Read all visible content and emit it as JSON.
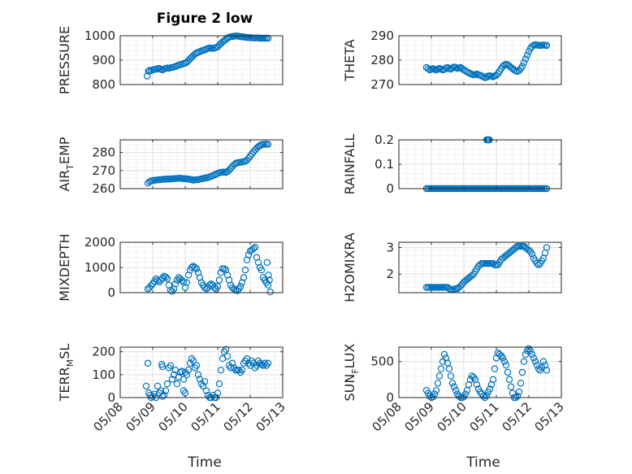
{
  "figure": {
    "title": "Figure 2 low",
    "xlabel": "Time"
  },
  "chart_data": [
    {
      "type": "scatter",
      "name": "pressure",
      "ylabel": "PRESSURE",
      "ylim": [
        800,
        1000
      ],
      "yticks": [
        800,
        900,
        1000
      ],
      "xticks": [
        "05/08",
        "05/09",
        "05/10",
        "05/11",
        "05/12",
        "05/13"
      ],
      "color": "#0072BD",
      "grid": true,
      "x": [
        0.83,
        0.87,
        0.9,
        0.95,
        1.0,
        1.05,
        1.1,
        1.15,
        1.2,
        1.25,
        1.3,
        1.35,
        1.4,
        1.45,
        1.5,
        1.55,
        1.6,
        1.65,
        1.7,
        1.75,
        1.8,
        1.85,
        1.9,
        1.95,
        2.0,
        2.05,
        2.1,
        2.15,
        2.2,
        2.25,
        2.3,
        2.35,
        2.4,
        2.45,
        2.5,
        2.55,
        2.6,
        2.65,
        2.7,
        2.75,
        2.8,
        2.85,
        2.9,
        2.95,
        3.0,
        3.05,
        3.1,
        3.15,
        3.2,
        3.25,
        3.3,
        3.35,
        3.4,
        3.45,
        3.5,
        3.55,
        3.6,
        3.65,
        3.7,
        3.75,
        3.8,
        3.85,
        3.9,
        3.95,
        4.0,
        4.05,
        4.1,
        4.15,
        4.2,
        4.25,
        4.3,
        4.35,
        4.4,
        4.45,
        4.5,
        4.55
      ],
      "y": [
        835,
        855,
        858,
        857,
        860,
        862,
        863,
        865,
        866,
        862,
        860,
        864,
        866,
        868,
        867,
        869,
        870,
        872,
        874,
        877,
        880,
        882,
        883,
        886,
        888,
        892,
        898,
        906,
        912,
        918,
        925,
        930,
        932,
        935,
        938,
        940,
        942,
        945,
        948,
        950,
        949,
        948,
        950,
        952,
        955,
        962,
        968,
        975,
        980,
        985,
        990,
        994,
        996,
        997,
        998,
        999,
        999,
        998,
        997,
        996,
        995,
        994,
        993,
        993,
        992,
        992,
        991,
        991,
        991,
        991,
        990,
        990,
        990,
        990,
        990,
        990
      ]
    },
    {
      "type": "scatter",
      "name": "theta",
      "ylabel": "THETA",
      "ylim": [
        270,
        290
      ],
      "yticks": [
        270,
        280,
        290
      ],
      "xticks": [
        "05/08",
        "05/09",
        "05/10",
        "05/11",
        "05/12",
        "05/13"
      ],
      "color": "#0072BD",
      "grid": true,
      "x": [
        0.85,
        0.9,
        0.95,
        1.0,
        1.05,
        1.1,
        1.15,
        1.2,
        1.25,
        1.3,
        1.35,
        1.4,
        1.45,
        1.5,
        1.55,
        1.6,
        1.65,
        1.7,
        1.75,
        1.8,
        1.85,
        1.9,
        1.95,
        2.0,
        2.05,
        2.1,
        2.15,
        2.2,
        2.25,
        2.3,
        2.35,
        2.4,
        2.45,
        2.5,
        2.55,
        2.6,
        2.65,
        2.7,
        2.75,
        2.8,
        2.85,
        2.9,
        2.95,
        3.0,
        3.05,
        3.1,
        3.15,
        3.2,
        3.25,
        3.3,
        3.35,
        3.4,
        3.45,
        3.5,
        3.55,
        3.6,
        3.65,
        3.7,
        3.75,
        3.8,
        3.85,
        3.9,
        3.95,
        4.0,
        4.05,
        4.1,
        4.15,
        4.2,
        4.25,
        4.3,
        4.35,
        4.4,
        4.45,
        4.5,
        4.55
      ],
      "y": [
        277,
        276.5,
        276,
        276.3,
        276.5,
        276.2,
        276,
        276.4,
        276.6,
        276.3,
        276,
        276.2,
        276.8,
        277,
        276.5,
        276.3,
        276.8,
        277.2,
        277,
        276.6,
        276.8,
        277,
        276.5,
        276,
        275.6,
        275.2,
        274.8,
        274.5,
        274.2,
        274,
        274.1,
        274.3,
        274,
        273.8,
        273.5,
        273.2,
        272.8,
        273,
        273.5,
        273.6,
        273.4,
        273.2,
        273.5,
        273.8,
        274.5,
        275.5,
        276.5,
        277.5,
        278,
        278.3,
        278.1,
        277.6,
        277,
        276.5,
        276,
        275.6,
        275.4,
        275.8,
        276.5,
        277.5,
        279,
        280.5,
        282,
        283.5,
        284.8,
        285.6,
        286.1,
        286.3,
        286.2,
        286.1,
        286,
        286.1,
        286.2,
        286.1,
        286
      ]
    },
    {
      "type": "scatter",
      "name": "air_temp",
      "ylabel": "AIR_TEMP",
      "ylim": [
        260,
        287
      ],
      "yticks": [
        260,
        270,
        280
      ],
      "xticks": [
        "05/08",
        "05/09",
        "05/10",
        "05/11",
        "05/12",
        "05/13"
      ],
      "color": "#0072BD",
      "grid": true,
      "x": [
        0.85,
        0.9,
        0.95,
        1.0,
        1.05,
        1.1,
        1.15,
        1.2,
        1.25,
        1.3,
        1.35,
        1.4,
        1.45,
        1.5,
        1.55,
        1.6,
        1.65,
        1.7,
        1.75,
        1.8,
        1.85,
        1.9,
        1.95,
        2.0,
        2.05,
        2.1,
        2.15,
        2.2,
        2.25,
        2.3,
        2.35,
        2.4,
        2.45,
        2.5,
        2.55,
        2.6,
        2.65,
        2.7,
        2.75,
        2.8,
        2.85,
        2.9,
        2.95,
        3.0,
        3.05,
        3.1,
        3.15,
        3.2,
        3.25,
        3.3,
        3.35,
        3.4,
        3.45,
        3.5,
        3.55,
        3.6,
        3.65,
        3.7,
        3.75,
        3.8,
        3.85,
        3.9,
        3.95,
        4.0,
        4.05,
        4.1,
        4.15,
        4.2,
        4.25,
        4.3,
        4.35,
        4.4,
        4.45,
        4.5,
        4.55
      ],
      "y": [
        263,
        263.8,
        264.2,
        264.4,
        264.6,
        264.7,
        264.8,
        264.9,
        265,
        265.1,
        265.2,
        265.2,
        265.3,
        265.3,
        265.4,
        265.4,
        265.5,
        265.6,
        265.6,
        265.7,
        265.7,
        265.6,
        265.5,
        265.5,
        265.4,
        265.3,
        265.1,
        264.9,
        264.7,
        264.8,
        264.9,
        265,
        265.2,
        265.4,
        265.6,
        265.8,
        266,
        266.2,
        266.5,
        266.8,
        267.2,
        267.6,
        268,
        268.4,
        268.8,
        269,
        269.1,
        269.2,
        269,
        269.4,
        270.2,
        271.2,
        272.3,
        273.2,
        273.9,
        274.3,
        274.5,
        274.6,
        274.7,
        274.9,
        275.2,
        275.8,
        276.8,
        278,
        279.2,
        280.3,
        281.4,
        282.4,
        283.2,
        283.8,
        284.3,
        284.5,
        284.6,
        284.6,
        284.5
      ]
    },
    {
      "type": "scatter",
      "name": "rainfall",
      "ylabel": "RAINFALL",
      "ylim": [
        0,
        0.2
      ],
      "yticks": [
        0,
        0.1,
        0.2
      ],
      "xticks": [
        "05/08",
        "05/09",
        "05/10",
        "05/11",
        "05/12",
        "05/13"
      ],
      "color": "#0072BD",
      "grid": true,
      "x": [
        0.85,
        0.9,
        0.95,
        1.0,
        1.05,
        1.1,
        1.15,
        1.2,
        1.25,
        1.3,
        1.35,
        1.4,
        1.45,
        1.5,
        1.55,
        1.6,
        1.65,
        1.7,
        1.75,
        1.8,
        1.85,
        1.9,
        1.95,
        2.0,
        2.05,
        2.1,
        2.15,
        2.2,
        2.25,
        2.3,
        2.35,
        2.4,
        2.45,
        2.5,
        2.55,
        2.6,
        2.65,
        2.7,
        2.75,
        2.8,
        2.85,
        2.9,
        2.95,
        3.0,
        3.05,
        3.1,
        3.15,
        3.2,
        3.25,
        3.3,
        3.35,
        3.4,
        3.45,
        3.5,
        3.55,
        3.6,
        3.65,
        3.7,
        3.75,
        3.8,
        3.85,
        3.9,
        3.95,
        4.0,
        4.05,
        4.1,
        4.15,
        4.2,
        4.25,
        4.3,
        4.35,
        4.4,
        4.45,
        4.5,
        4.55,
        2.7,
        2.73,
        2.76,
        2.79
      ],
      "y": [
        0,
        0,
        0,
        0,
        0,
        0,
        0,
        0,
        0,
        0,
        0,
        0,
        0,
        0,
        0,
        0,
        0,
        0,
        0,
        0,
        0,
        0,
        0,
        0,
        0,
        0,
        0,
        0,
        0,
        0,
        0,
        0,
        0,
        0,
        0,
        0,
        0,
        0,
        0,
        0,
        0,
        0,
        0,
        0,
        0,
        0,
        0,
        0,
        0,
        0,
        0,
        0,
        0,
        0,
        0,
        0,
        0,
        0,
        0,
        0,
        0,
        0,
        0,
        0,
        0,
        0,
        0,
        0,
        0,
        0,
        0,
        0,
        0,
        0,
        0,
        0.2,
        0.2,
        0.2,
        0.2
      ]
    },
    {
      "type": "scatter",
      "name": "mixdepth",
      "ylabel": "MIXDEPTH",
      "ylim": [
        0,
        2000
      ],
      "yticks": [
        0,
        1000,
        2000
      ],
      "xticks": [
        "05/08",
        "05/09",
        "05/10",
        "05/11",
        "05/12",
        "05/13"
      ],
      "color": "#0072BD",
      "grid": true,
      "x": [
        0.85,
        0.9,
        0.95,
        1.0,
        1.05,
        1.1,
        1.15,
        1.2,
        1.25,
        1.3,
        1.35,
        1.4,
        1.45,
        1.5,
        1.55,
        1.6,
        1.65,
        1.7,
        1.75,
        1.8,
        1.85,
        1.9,
        1.95,
        2.0,
        2.05,
        2.1,
        2.15,
        2.2,
        2.25,
        2.3,
        2.35,
        2.4,
        2.45,
        2.5,
        2.55,
        2.6,
        2.65,
        2.7,
        2.75,
        2.8,
        2.85,
        2.9,
        2.95,
        3.0,
        3.05,
        3.1,
        3.15,
        3.2,
        3.25,
        3.3,
        3.35,
        3.4,
        3.45,
        3.5,
        3.55,
        3.6,
        3.65,
        3.7,
        3.75,
        3.8,
        3.85,
        3.9,
        3.95,
        4.0,
        4.05,
        4.1,
        4.15,
        4.2,
        4.25,
        4.3,
        4.35,
        4.4,
        4.45,
        4.5,
        4.55,
        4.52,
        4.56,
        4.59,
        4.62
      ],
      "y": [
        150,
        200,
        280,
        350,
        450,
        550,
        480,
        420,
        500,
        580,
        650,
        620,
        560,
        300,
        100,
        50,
        150,
        350,
        500,
        600,
        550,
        480,
        420,
        200,
        400,
        700,
        900,
        1000,
        1050,
        1000,
        950,
        800,
        600,
        400,
        300,
        200,
        150,
        200,
        300,
        350,
        300,
        200,
        150,
        250,
        500,
        800,
        950,
        950,
        900,
        700,
        500,
        300,
        200,
        150,
        100,
        80,
        150,
        250,
        400,
        600,
        900,
        1300,
        1500,
        1650,
        1700,
        1750,
        1800,
        1400,
        1200,
        1000,
        900,
        600,
        500,
        400,
        300,
        1200,
        700,
        500,
        30
      ]
    },
    {
      "type": "scatter",
      "name": "h2o_mixratio",
      "ylabel": "H2OMIXRA",
      "ylim": [
        1.3,
        3.2
      ],
      "yticks": [
        2,
        3
      ],
      "xticks": [
        "05/08",
        "05/09",
        "05/10",
        "05/11",
        "05/12",
        "05/13"
      ],
      "color": "#0072BD",
      "grid": true,
      "x": [
        0.85,
        0.9,
        0.95,
        1.0,
        1.05,
        1.1,
        1.15,
        1.2,
        1.25,
        1.3,
        1.35,
        1.4,
        1.45,
        1.5,
        1.55,
        1.6,
        1.65,
        1.7,
        1.75,
        1.8,
        1.85,
        1.9,
        1.95,
        2.0,
        2.05,
        2.1,
        2.15,
        2.2,
        2.25,
        2.3,
        2.35,
        2.4,
        2.45,
        2.5,
        2.55,
        2.6,
        2.65,
        2.7,
        2.75,
        2.8,
        2.85,
        2.9,
        2.95,
        3.0,
        3.05,
        3.1,
        3.15,
        3.2,
        3.25,
        3.3,
        3.35,
        3.4,
        3.45,
        3.5,
        3.55,
        3.6,
        3.65,
        3.7,
        3.75,
        3.8,
        3.85,
        3.9,
        3.95,
        4.0,
        4.05,
        4.1,
        4.15,
        4.2,
        4.25,
        4.3,
        4.35,
        4.4,
        4.45,
        4.5,
        4.55
      ],
      "y": [
        1.5,
        1.5,
        1.5,
        1.5,
        1.5,
        1.5,
        1.5,
        1.5,
        1.5,
        1.5,
        1.5,
        1.5,
        1.5,
        1.5,
        1.45,
        1.42,
        1.42,
        1.43,
        1.45,
        1.45,
        1.5,
        1.55,
        1.62,
        1.7,
        1.75,
        1.8,
        1.85,
        1.9,
        1.95,
        2.0,
        2.1,
        2.2,
        2.3,
        2.35,
        2.4,
        2.4,
        2.4,
        2.4,
        2.4,
        2.4,
        2.4,
        2.4,
        2.35,
        2.35,
        2.35,
        2.45,
        2.55,
        2.6,
        2.65,
        2.7,
        2.75,
        2.8,
        2.85,
        2.9,
        2.95,
        3.0,
        3.05,
        3.05,
        3.05,
        3.05,
        3.05,
        3.0,
        2.95,
        2.9,
        2.85,
        2.75,
        2.6,
        2.5,
        2.4,
        2.35,
        2.4,
        2.5,
        2.6,
        2.8,
        3.0
      ]
    },
    {
      "type": "scatter",
      "name": "terr_msl",
      "ylabel": "TERR_MSL",
      "ylim": [
        0,
        220
      ],
      "yticks": [
        0,
        100,
        200
      ],
      "xticks": [
        "05/08",
        "05/09",
        "05/10",
        "05/11",
        "05/12",
        "05/13"
      ],
      "xticklabels_visible": true,
      "color": "#0072BD",
      "grid": true,
      "x": [
        0.8,
        0.85,
        0.88,
        0.92,
        0.95,
        1.0,
        1.05,
        1.1,
        1.15,
        1.2,
        1.25,
        1.3,
        1.35,
        1.4,
        1.45,
        1.5,
        1.55,
        1.6,
        1.65,
        1.7,
        1.75,
        1.8,
        1.85,
        1.9,
        1.95,
        2.0,
        2.05,
        2.1,
        2.15,
        2.2,
        2.25,
        2.3,
        2.35,
        2.4,
        2.45,
        2.5,
        2.55,
        2.6,
        2.65,
        2.7,
        2.75,
        2.8,
        2.85,
        2.9,
        2.95,
        3.0,
        3.05,
        3.1,
        3.15,
        3.2,
        3.25,
        3.3,
        3.35,
        3.4,
        3.45,
        3.5,
        3.55,
        3.6,
        3.65,
        3.7,
        3.75,
        3.8,
        3.85,
        3.9,
        3.95,
        4.0,
        4.05,
        4.1,
        4.15,
        4.2,
        4.25,
        4.3,
        4.35,
        4.4,
        4.45,
        4.5,
        4.55,
        1.28,
        1.3,
        1.95,
        2.0
      ],
      "y": [
        50,
        150,
        20,
        10,
        0,
        5,
        15,
        0,
        50,
        20,
        30,
        5,
        10,
        30,
        60,
        130,
        140,
        80,
        100,
        120,
        60,
        90,
        110,
        115,
        80,
        110,
        100,
        120,
        150,
        170,
        160,
        130,
        140,
        100,
        80,
        60,
        50,
        70,
        30,
        10,
        0,
        0,
        10,
        0,
        0,
        20,
        60,
        120,
        170,
        200,
        210,
        180,
        140,
        130,
        150,
        130,
        120,
        120,
        120,
        110,
        120,
        150,
        160,
        170,
        150,
        140,
        160,
        150,
        130,
        140,
        160,
        150,
        145,
        140,
        150,
        140,
        150,
        145,
        135,
        30,
        20
      ]
    },
    {
      "type": "scatter",
      "name": "sun_flux",
      "ylabel": "SUN_FLUX",
      "ylim": [
        0,
        700
      ],
      "yticks": [
        0,
        500
      ],
      "xticks": [
        "05/08",
        "05/09",
        "05/10",
        "05/11",
        "05/12",
        "05/13"
      ],
      "color": "#0072BD",
      "grid": true,
      "x": [
        0.85,
        0.9,
        0.95,
        1.0,
        1.05,
        1.1,
        1.15,
        1.2,
        1.25,
        1.3,
        1.35,
        1.4,
        1.45,
        1.5,
        1.55,
        1.6,
        1.65,
        1.7,
        1.75,
        1.8,
        1.85,
        1.9,
        1.95,
        2.0,
        2.05,
        2.1,
        2.15,
        2.2,
        2.25,
        2.3,
        2.35,
        2.4,
        2.45,
        2.5,
        2.55,
        2.6,
        2.65,
        2.7,
        2.75,
        2.8,
        2.85,
        2.9,
        2.95,
        3.0,
        3.05,
        3.1,
        3.15,
        3.2,
        3.25,
        3.3,
        3.35,
        3.4,
        3.45,
        3.5,
        3.55,
        3.6,
        3.65,
        3.7,
        3.75,
        3.8,
        3.85,
        3.9,
        3.95,
        4.0,
        4.05,
        4.1,
        4.15,
        4.2,
        4.25,
        4.3,
        4.35,
        4.4,
        4.45,
        4.5,
        4.55
      ],
      "y": [
        100,
        60,
        20,
        0,
        10,
        50,
        100,
        200,
        300,
        400,
        500,
        600,
        550,
        480,
        400,
        300,
        200,
        150,
        100,
        50,
        20,
        0,
        0,
        10,
        50,
        100,
        180,
        250,
        300,
        280,
        250,
        180,
        120,
        80,
        50,
        20,
        0,
        30,
        80,
        120,
        180,
        250,
        400,
        550,
        620,
        600,
        580,
        550,
        500,
        450,
        350,
        250,
        150,
        60,
        0,
        0,
        20,
        80,
        200,
        350,
        500,
        600,
        650,
        680,
        650,
        600,
        550,
        500,
        450,
        400,
        380,
        420,
        500,
        450,
        380
      ]
    }
  ]
}
